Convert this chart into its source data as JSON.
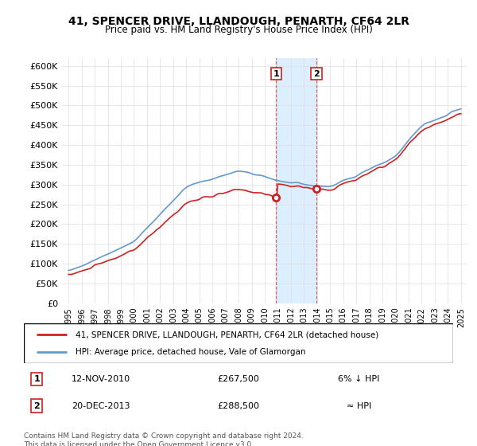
{
  "title": "41, SPENCER DRIVE, LLANDOUGH, PENARTH, CF64 2LR",
  "subtitle": "Price paid vs. HM Land Registry's House Price Index (HPI)",
  "legend_line1": "41, SPENCER DRIVE, LLANDOUGH, PENARTH, CF64 2LR (detached house)",
  "legend_line2": "HPI: Average price, detached house, Vale of Glamorgan",
  "annotation1": {
    "num": "1",
    "date": "12-NOV-2010",
    "price": "£267,500",
    "vs_hpi": "6% ↓ HPI",
    "x_year": 2010.87
  },
  "annotation2": {
    "num": "2",
    "date": "20-DEC-2013",
    "price": "£288,500",
    "vs_hpi": "≈ HPI",
    "x_year": 2013.96
  },
  "footer": "Contains HM Land Registry data © Crown copyright and database right 2024.\nThis data is licensed under the Open Government Licence v3.0.",
  "hpi_color": "#6699cc",
  "price_color": "#cc2222",
  "highlight_color": "#ddeeff",
  "ylim": [
    0,
    620000
  ],
  "yticks": [
    0,
    50000,
    100000,
    150000,
    200000,
    250000,
    300000,
    350000,
    400000,
    450000,
    500000,
    550000,
    600000
  ],
  "xlim_start": 1994.5,
  "xlim_end": 2025.5
}
